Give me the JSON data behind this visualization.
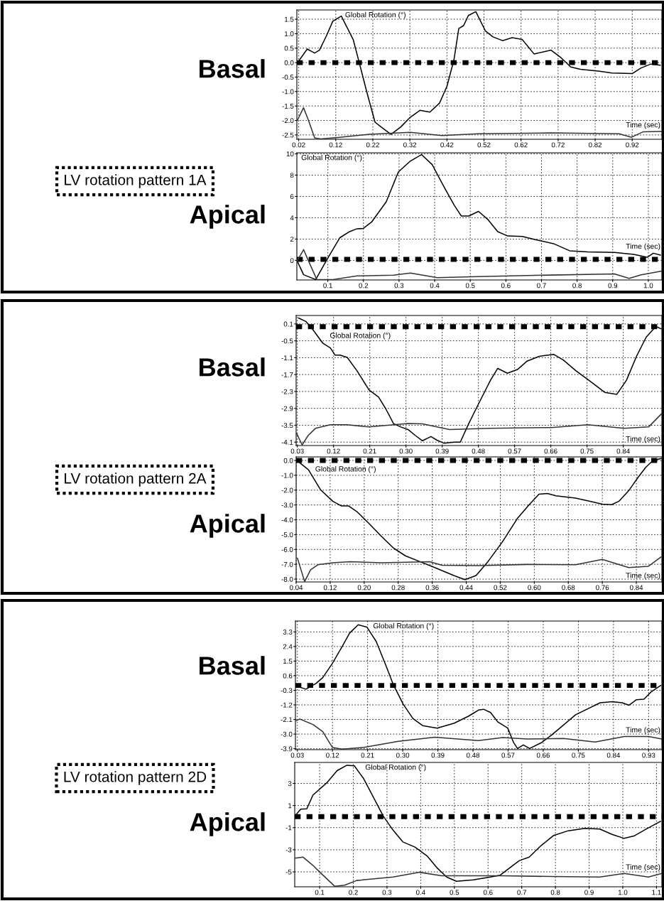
{
  "chart_data": [
    {
      "type": "line",
      "title": "Basal",
      "ylabel": "Global Rotation (°)",
      "xlabel": "Time (sec)",
      "annotations": [
        "LV rotation pattern 1A"
      ],
      "grid": true,
      "legend": false,
      "xlim": [
        0.015,
        1.0
      ],
      "ylim": [
        -2.65,
        1.82
      ],
      "xticks": [
        0.02,
        0.12,
        0.22,
        0.32,
        0.42,
        0.52,
        0.62,
        0.72,
        0.82,
        0.92
      ],
      "yticks": [
        1.5,
        {
          "value": 1,
          "label": "1.0"
        },
        0.5,
        {
          "value": 0,
          "label": "0.0"
        },
        -0.5,
        {
          "value": -1,
          "label": "-1.0"
        },
        -1.5,
        {
          "value": -2,
          "label": "-2.0"
        },
        -2.5
      ],
      "ref_lines": [
        {
          "axis": "y",
          "value": 0,
          "color": "#000000",
          "line_style": "dotted"
        }
      ],
      "series": [
        {
          "color": "#000000",
          "x": [
            0.017,
            0.043,
            0.063,
            0.076,
            0.095,
            0.112,
            0.135,
            0.167,
            0.184,
            0.203,
            0.226,
            0.243,
            0.269,
            0.295,
            0.321,
            0.347,
            0.374,
            0.4,
            0.42,
            0.439,
            0.452,
            0.465,
            0.478,
            0.498,
            0.524,
            0.544,
            0.57,
            0.596,
            0.623,
            0.655,
            0.701,
            0.727,
            0.754,
            0.78,
            0.832,
            0.865,
            0.92,
            0.943,
            0.97,
            0.996
          ],
          "values": [
            0.0,
            0.47,
            0.33,
            0.43,
            0.93,
            1.43,
            1.61,
            0.8,
            -0.03,
            -0.98,
            -2.06,
            -2.23,
            -2.48,
            -2.23,
            -1.89,
            -1.65,
            -1.71,
            -1.4,
            -0.82,
            0.1,
            1.18,
            1.28,
            1.63,
            1.76,
            1.09,
            0.89,
            0.76,
            0.86,
            0.8,
            0.3,
            0.43,
            0.18,
            -0.15,
            -0.23,
            -0.3,
            -0.36,
            -0.38,
            -0.19,
            -0.05,
            -0.09
          ]
        },
        {
          "color": "#333333",
          "x": [
            0.017,
            0.033,
            0.046,
            0.063,
            0.079,
            0.131,
            0.21,
            0.321,
            0.406,
            0.505,
            0.7,
            0.885,
            0.918,
            0.95,
            0.999
          ],
          "values": [
            -1.98,
            -1.56,
            -1.98,
            -2.6,
            -2.64,
            -2.58,
            -2.48,
            -2.41,
            -2.52,
            -2.46,
            -2.43,
            -2.46,
            -2.58,
            -2.39,
            -2.38
          ]
        }
      ]
    },
    {
      "type": "line",
      "title": "Apical",
      "ylabel": "Global Rotation (°)",
      "xlabel": "Time (sec)",
      "grid": true,
      "legend": false,
      "xlim": [
        0.013,
        1.038
      ],
      "ylim": [
        -1.84,
        10.1
      ],
      "xticks": [
        0.1,
        0.2,
        0.3,
        0.4,
        0.5,
        0.6,
        0.7,
        0.8,
        0.9,
        {
          "value": 1,
          "label": "1.0"
        }
      ],
      "yticks": [
        0,
        2,
        4,
        6,
        8,
        10
      ],
      "ref_lines": [
        {
          "axis": "y",
          "value": 0.1,
          "color": "#000000",
          "line_style": "dotted"
        }
      ],
      "series": [
        {
          "color": "#000000",
          "x": [
            0.013,
            0.032,
            0.066,
            0.1,
            0.134,
            0.161,
            0.182,
            0.199,
            0.223,
            0.264,
            0.298,
            0.332,
            0.363,
            0.393,
            0.427,
            0.455,
            0.475,
            0.496,
            0.523,
            0.55,
            0.577,
            0.605,
            0.646,
            0.687,
            0.734,
            0.779,
            0.83,
            0.905,
            0.959,
            0.997,
            1.014,
            1.034
          ],
          "values": [
            0,
            -1.35,
            -1.8,
            0.22,
            2.13,
            2.7,
            2.97,
            2.99,
            3.6,
            5.5,
            8.3,
            9.33,
            9.93,
            8.99,
            6.85,
            5.17,
            4.16,
            4.16,
            4.6,
            3.82,
            2.7,
            2.29,
            2.25,
            1.91,
            1.57,
            0.9,
            0.79,
            0.74,
            0.56,
            0.29,
            0.67,
            0.49
          ]
        },
        {
          "color": "#333333",
          "x": [
            0.013,
            0.032,
            0.045,
            0.069,
            0.114,
            0.182,
            0.284,
            0.332,
            0.407,
            0.523,
            0.659,
            0.905,
            0.946,
            0.98,
            1.038
          ],
          "values": [
            -0.11,
            1.01,
            0,
            -1.8,
            -1.8,
            -1.46,
            -1.39,
            -1.19,
            -1.62,
            -1.53,
            -1.42,
            -1.28,
            -1.69,
            -1.35,
            -1.01
          ]
        }
      ]
    },
    {
      "type": "line",
      "title": "Basal",
      "ylabel": "Global Rotation (°)",
      "xlabel": "Time (sec)",
      "annotations": [
        "LV rotation pattern 2A"
      ],
      "grid": true,
      "legend": false,
      "xlim": [
        0.027,
        0.936
      ],
      "ylim": [
        -4.22,
        0.4
      ],
      "xticks": [
        0.03,
        0.12,
        0.21,
        {
          "value": 0.3,
          "label": "0.30"
        },
        0.39,
        0.48,
        0.57,
        0.66,
        0.75,
        0.84
      ],
      "yticks": [
        0.1,
        -0.5,
        -1.1,
        -1.7,
        -2.3,
        -2.9,
        -3.5,
        -4.1
      ],
      "ref_lines": [
        {
          "axis": "y",
          "value": 0.0,
          "color": "#000000",
          "line_style": "dotted"
        }
      ],
      "series": [
        {
          "color": "#000000",
          "x": [
            0.033,
            0.051,
            0.069,
            0.093,
            0.112,
            0.124,
            0.136,
            0.154,
            0.178,
            0.208,
            0.232,
            0.25,
            0.269,
            0.287,
            0.305,
            0.323,
            0.341,
            0.362,
            0.377,
            0.395,
            0.42,
            0.435,
            0.456,
            0.48,
            0.51,
            0.528,
            0.552,
            0.577,
            0.601,
            0.631,
            0.667,
            0.691,
            0.722,
            0.758,
            0.794,
            0.824,
            0.848,
            0.873,
            0.897,
            0.921,
            0.934
          ],
          "values": [
            0.31,
            0.19,
            -0.11,
            -0.58,
            -0.75,
            -1.01,
            -1.01,
            -1.09,
            -1.56,
            -2.24,
            -2.5,
            -2.92,
            -3.44,
            -3.56,
            -3.65,
            -3.86,
            -4.05,
            -3.9,
            -4.03,
            -4.14,
            -4.1,
            -4.1,
            -3.44,
            -2.75,
            -1.9,
            -1.48,
            -1.65,
            -1.52,
            -1.22,
            -1.05,
            -0.98,
            -1.18,
            -1.56,
            -1.94,
            -2.33,
            -2.4,
            -1.9,
            -1.05,
            -0.37,
            0.01,
            -0.07
          ]
        },
        {
          "color": "#333333",
          "x": [
            0.028,
            0.042,
            0.057,
            0.075,
            0.112,
            0.154,
            0.208,
            0.305,
            0.341,
            0.408,
            0.51,
            0.661,
            0.752,
            0.842,
            0.903,
            0.936
          ],
          "values": [
            -3.78,
            -4.2,
            -3.86,
            -3.61,
            -3.48,
            -3.48,
            -3.56,
            -3.44,
            -3.45,
            -3.65,
            -3.61,
            -3.58,
            -3.48,
            -3.61,
            -3.56,
            -3.08
          ]
        }
      ]
    },
    {
      "type": "line",
      "title": "Apical",
      "ylabel": "Global Rotation (°)",
      "xlabel": "Time (sec)",
      "grid": true,
      "legend": false,
      "xlim": [
        0.04,
        0.9
      ],
      "ylim": [
        -8.19,
        0.24
      ],
      "xticks": [
        0.04,
        0.12,
        {
          "value": 0.2,
          "label": "0.20"
        },
        0.28,
        0.36,
        0.44,
        0.52,
        {
          "value": 0.6,
          "label": "0.60"
        },
        0.68,
        0.76,
        0.84
      ],
      "yticks": [
        {
          "value": 0,
          "label": "0.0"
        },
        {
          "value": -1,
          "label": "-1.0"
        },
        {
          "value": -2,
          "label": "-2.0"
        },
        {
          "value": -3,
          "label": "-3.0"
        },
        {
          "value": -4,
          "label": "-4.0"
        },
        {
          "value": -5,
          "label": "-5.0"
        },
        {
          "value": -6,
          "label": "-6.0"
        },
        {
          "value": -7,
          "label": "-7.0"
        },
        {
          "value": -8,
          "label": "-8.0"
        }
      ],
      "ref_lines": [
        {
          "axis": "y",
          "value": 0,
          "color": "#000000",
          "line_style": "dotted"
        }
      ],
      "series": [
        {
          "color": "#000000",
          "x": [
            0.043,
            0.069,
            0.097,
            0.126,
            0.146,
            0.163,
            0.183,
            0.211,
            0.24,
            0.268,
            0.297,
            0.331,
            0.366,
            0.411,
            0.437,
            0.463,
            0.491,
            0.525,
            0.56,
            0.588,
            0.611,
            0.631,
            0.651,
            0.697,
            0.731,
            0.76,
            0.782,
            0.799,
            0.822,
            0.845,
            0.862,
            0.879,
            0.898
          ],
          "values": [
            -0.03,
            -0.63,
            -1.96,
            -2.75,
            -3.06,
            -3.06,
            -3.45,
            -4.24,
            -5.1,
            -5.88,
            -6.43,
            -6.82,
            -7.22,
            -7.76,
            -8.03,
            -7.76,
            -6.82,
            -5.49,
            -3.92,
            -2.98,
            -2.27,
            -2.23,
            -2.38,
            -2.54,
            -2.75,
            -2.95,
            -2.98,
            -2.75,
            -2.04,
            -1.1,
            -0.47,
            0.0,
            0.13
          ]
        },
        {
          "color": "#333333",
          "x": [
            0.043,
            0.06,
            0.074,
            0.091,
            0.126,
            0.166,
            0.24,
            0.354,
            0.383,
            0.468,
            0.583,
            0.697,
            0.76,
            0.822,
            0.868,
            0.898
          ],
          "values": [
            -6.59,
            -8.16,
            -7.37,
            -7.03,
            -6.9,
            -6.82,
            -6.9,
            -6.82,
            -7.06,
            -7.09,
            -7.01,
            -7.03,
            -6.67,
            -7.22,
            -7.14,
            -6.51
          ]
        }
      ]
    },
    {
      "type": "line",
      "title": "Basal",
      "ylabel": "Global Rotation (°)",
      "xlabel": "Time (sec)",
      "annotations": [
        "LV rotation pattern 2D"
      ],
      "grid": true,
      "legend": false,
      "xlim": [
        0.025,
        0.964
      ],
      "ylim": [
        -3.96,
        3.97
      ],
      "xticks": [
        0.03,
        0.12,
        0.21,
        {
          "value": 0.3,
          "label": "0.30"
        },
        0.39,
        0.48,
        0.57,
        0.66,
        0.75,
        0.84,
        0.93
      ],
      "yticks": [
        3.3,
        2.4,
        1.5,
        0.6,
        -0.3,
        -1.2,
        -2.1,
        {
          "value": -3,
          "label": "-3.0"
        },
        -3.9
      ],
      "ref_lines": [
        {
          "axis": "y",
          "value": 0.0,
          "color": "#000000",
          "line_style": "dotted"
        }
      ],
      "series": [
        {
          "color": "#000000",
          "x": [
            0.027,
            0.052,
            0.077,
            0.095,
            0.12,
            0.145,
            0.164,
            0.186,
            0.208,
            0.232,
            0.257,
            0.276,
            0.301,
            0.326,
            0.351,
            0.388,
            0.432,
            0.469,
            0.494,
            0.507,
            0.525,
            0.544,
            0.569,
            0.584,
            0.594,
            0.609,
            0.625,
            0.656,
            0.681,
            0.743,
            0.806,
            0.837,
            0.862,
            0.88,
            0.899,
            0.918,
            0.936,
            0.961
          ],
          "values": [
            -0.04,
            -0.23,
            0.11,
            0.48,
            1.37,
            2.41,
            3.23,
            3.74,
            3.6,
            2.71,
            1.22,
            0.04,
            -1.15,
            -2.04,
            -2.48,
            -2.63,
            -2.33,
            -1.89,
            -1.52,
            -1.47,
            -1.67,
            -2.26,
            -2.63,
            -3.52,
            -3.89,
            -3.67,
            -3.89,
            -3.52,
            -3.07,
            -1.81,
            -1.07,
            -1.0,
            -1.07,
            -1.22,
            -0.88,
            -0.85,
            -0.41,
            0.0
          ]
        },
        {
          "color": "#333333",
          "x": [
            0.027,
            0.036,
            0.07,
            0.095,
            0.12,
            0.145,
            0.201,
            0.289,
            0.382,
            0.494,
            0.556,
            0.619,
            0.712,
            0.793,
            0.868,
            0.93,
            0.964
          ],
          "values": [
            -2.18,
            -2.07,
            -2.41,
            -2.85,
            -3.83,
            -3.93,
            -3.82,
            -3.45,
            -3.19,
            -3.4,
            -3.22,
            -3.3,
            -3.27,
            -3.49,
            -3.15,
            -3.15,
            -3.3
          ]
        }
      ]
    },
    {
      "type": "line",
      "title": "Apical",
      "ylabel": "Global Rotation (°)",
      "xlabel": "Time (sec)",
      "grid": true,
      "legend": false,
      "xlim": [
        0.026,
        1.116
      ],
      "ylim": [
        -6.35,
        4.9
      ],
      "xticks": [
        0.1,
        0.2,
        0.3,
        0.4,
        0.5,
        0.6,
        0.7,
        0.8,
        0.9,
        {
          "value": 1,
          "label": "1.0"
        },
        1.1
      ],
      "yticks": [
        3,
        1,
        -1,
        -3,
        -5
      ],
      "ref_lines": [
        {
          "axis": "y",
          "value": 0,
          "color": "#000000",
          "line_style": "dotted"
        }
      ],
      "series": [
        {
          "color": "#000000",
          "x": [
            0.026,
            0.044,
            0.062,
            0.08,
            0.123,
            0.152,
            0.181,
            0.203,
            0.231,
            0.26,
            0.289,
            0.318,
            0.347,
            0.383,
            0.419,
            0.448,
            0.477,
            0.506,
            0.556,
            0.607,
            0.636,
            0.665,
            0.693,
            0.722,
            0.758,
            0.795,
            0.838,
            0.888,
            0.932,
            0.968,
            1.004,
            1.033,
            1.069,
            1.112
          ],
          "values": [
            0.04,
            0.67,
            0.71,
            1.94,
            3.11,
            4.16,
            4.65,
            4.59,
            3.42,
            1.73,
            0.04,
            -1.23,
            -2.29,
            -2.76,
            -3.56,
            -4.62,
            -5.47,
            -5.85,
            -5.72,
            -5.47,
            -5.3,
            -4.62,
            -3.98,
            -3.67,
            -2.61,
            -1.7,
            -1.28,
            -1.06,
            -1.13,
            -1.61,
            -1.97,
            -1.76,
            -1.13,
            -0.43
          ]
        },
        {
          "color": "#333333",
          "x": [
            0.026,
            0.051,
            0.08,
            0.101,
            0.145,
            0.174,
            0.21,
            0.318,
            0.397,
            0.462,
            0.643,
            0.787,
            0.932,
            1.004,
            1.076,
            1.116
          ],
          "values": [
            -3.77,
            -3.67,
            -4.41,
            -5.04,
            -6.31,
            -6.21,
            -5.78,
            -5.47,
            -5.04,
            -5.36,
            -5.36,
            -5.42,
            -5.47,
            -5.15,
            -5.47,
            -5.15
          ]
        }
      ]
    }
  ]
}
